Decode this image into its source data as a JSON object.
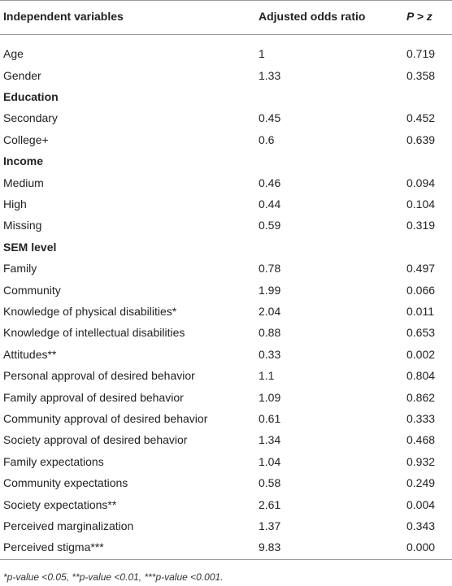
{
  "table": {
    "header": [
      "Independent variables",
      "Adjusted odds ratio",
      "P > z"
    ],
    "rows": [
      [
        "Age",
        "1",
        "0.719"
      ],
      [
        "Gender",
        "1.33",
        "0.358"
      ],
      [
        "Education"
      ],
      [
        "Secondary",
        "0.45",
        "0.452"
      ],
      [
        "College+",
        "0.6",
        "0.639"
      ],
      [
        "Income"
      ],
      [
        "Medium",
        "0.46",
        "0.094"
      ],
      [
        "High",
        "0.44",
        "0.104"
      ],
      [
        "Missing",
        "0.59",
        "0.319"
      ],
      [
        "SEM level"
      ],
      [
        "Family",
        "0.78",
        "0.497"
      ],
      [
        "Community",
        "1.99",
        "0.066"
      ],
      [
        "Knowledge of physical disabilities*",
        "2.04",
        "0.011"
      ],
      [
        "Knowledge of intellectual disabilities",
        "0.88",
        "0.653"
      ],
      [
        "Attitudes**",
        "0.33",
        "0.002"
      ],
      [
        "Personal approval of desired behavior",
        "1.1",
        "0.804"
      ],
      [
        "Family approval of desired behavior",
        "1.09",
        "0.862"
      ],
      [
        "Community approval of desired behavior",
        "0.61",
        "0.333"
      ],
      [
        "Society approval of desired behavior",
        "1.34",
        "0.468"
      ],
      [
        "Family expectations",
        "1.04",
        "0.932"
      ],
      [
        "Community expectations",
        "0.58",
        "0.249"
      ],
      [
        "Society expectations**",
        "2.61",
        "0.004"
      ],
      [
        "Perceived marginalization",
        "1.37",
        "0.343"
      ],
      [
        "Perceived stigma***",
        "9.83",
        "0.000"
      ]
    ],
    "footnote": "*p-value <0.05, **p-value <0.01, ***p-value <0.001."
  }
}
